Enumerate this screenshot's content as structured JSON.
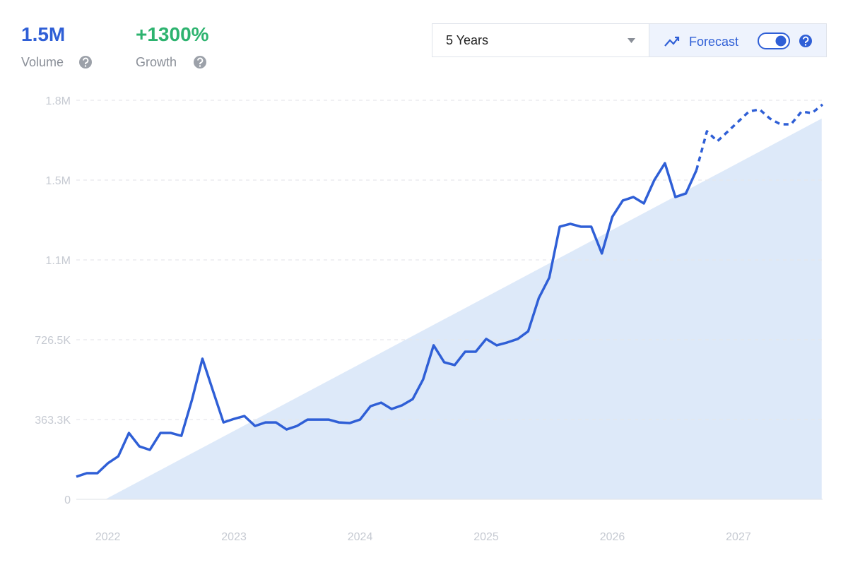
{
  "header": {
    "volume": "1.5M",
    "volume_label": "Volume",
    "growth": "+1300%",
    "growth_label": "Growth"
  },
  "controls": {
    "range": "5 Years",
    "forecast": "Forecast"
  },
  "chart_data": {
    "type": "line",
    "x": [
      2021.75,
      2021.833,
      2021.917,
      2022,
      2022.083,
      2022.167,
      2022.25,
      2022.333,
      2022.417,
      2022.5,
      2022.583,
      2022.667,
      2022.75,
      2022.833,
      2022.917,
      2023,
      2023.083,
      2023.167,
      2023.25,
      2023.333,
      2023.417,
      2023.5,
      2023.583,
      2023.667,
      2023.75,
      2023.833,
      2023.917,
      2024,
      2024.083,
      2024.167,
      2024.25,
      2024.333,
      2024.417,
      2024.5,
      2024.583,
      2024.667,
      2024.75,
      2024.833,
      2024.917,
      2025,
      2025.083,
      2025.167,
      2025.25,
      2025.333,
      2025.417,
      2025.5,
      2025.583,
      2025.667,
      2025.75,
      2025.833,
      2025.917,
      2026,
      2026.083,
      2026.167,
      2026.25,
      2026.333,
      2026.417,
      2026.5,
      2026.583,
      2026.667,
      2026.75,
      2026.833,
      2026.917,
      2027,
      2027.083,
      2027.167,
      2027.25,
      2027.333,
      2027.417,
      2027.5,
      2027.583,
      2027.667
    ],
    "series": [
      {
        "color": "#2f5fd6",
        "dashed": false,
        "values": [
          103000,
          119000,
          119000,
          164000,
          196000,
          302000,
          241000,
          225000,
          302000,
          302000,
          289000,
          453000,
          640000,
          495000,
          350000,
          366000,
          379000,
          334000,
          350000,
          350000,
          318000,
          334000,
          363000,
          363000,
          363000,
          350000,
          347000,
          363000,
          424000,
          440000,
          411000,
          428000,
          456000,
          546000,
          701000,
          624000,
          611000,
          672000,
          672000,
          730000,
          701000,
          714000,
          730000,
          765000,
          916000,
          1009000,
          1241000,
          1254000,
          1241000,
          1241000,
          1119000,
          1286000,
          1360000,
          1376000,
          1347000,
          1453000,
          1530000,
          1376000,
          1392000,
          1498000,
          null,
          null,
          null,
          null,
          null,
          null,
          null,
          null,
          null,
          null,
          null,
          null
        ]
      },
      {
        "color": "#2f5fd6",
        "dashed": true,
        "values": [
          null,
          null,
          null,
          null,
          null,
          null,
          null,
          null,
          null,
          null,
          null,
          null,
          null,
          null,
          null,
          null,
          null,
          null,
          null,
          null,
          null,
          null,
          null,
          null,
          null,
          null,
          null,
          null,
          null,
          null,
          null,
          null,
          null,
          null,
          null,
          null,
          null,
          null,
          null,
          null,
          null,
          null,
          null,
          null,
          null,
          null,
          null,
          null,
          null,
          null,
          null,
          null,
          null,
          null,
          null,
          null,
          null,
          null,
          null,
          1498000,
          1675000,
          1630000,
          1675000,
          1720000,
          1765000,
          1775000,
          1733000,
          1707000,
          1707000,
          1765000,
          1758000,
          1797000
        ]
      }
    ],
    "trend_x": [
      2021.98,
      2027.66
    ],
    "trend_values": [
      0,
      1733000
    ],
    "trend_color": "#dde9f9",
    "xlim": [
      2021.75,
      2027.667
    ],
    "xticks": [
      2022,
      2023,
      2024,
      2025,
      2026,
      2027
    ],
    "ylim": [
      0,
      1816300
    ],
    "yticks": [
      {
        "value": 0,
        "label": "0"
      },
      {
        "value": 363300,
        "label": "363.3K"
      },
      {
        "value": 726500,
        "label": "726.5K"
      },
      {
        "value": 1089800,
        "label": "1.1M"
      },
      {
        "value": 1453000,
        "label": "1.5M"
      },
      {
        "value": 1816300,
        "label": "1.8M"
      }
    ],
    "grid": true
  }
}
